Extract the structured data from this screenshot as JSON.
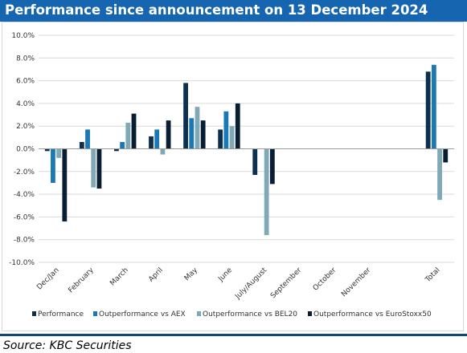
{
  "header": {
    "title": "Performance since announcement on 13 December 2024"
  },
  "footer": {
    "source": "Source: KBC Securities"
  },
  "colors": {
    "header_bg": "#1565b0",
    "series": [
      "#0e2f4d",
      "#1a78b4",
      "#7fa9b5",
      "#0a1e33"
    ],
    "grid": "#d9d9d9"
  },
  "chart_data": {
    "type": "bar",
    "title": "Performance since announcement on 13 December 2024",
    "xlabel": "",
    "ylabel": "",
    "ylim": [
      -10.0,
      10.0
    ],
    "ytick_values": [
      10,
      8,
      6,
      4,
      2,
      0,
      -2,
      -4,
      -6,
      -8,
      -10
    ],
    "ytick_labels": [
      "10.0%",
      "8.0%",
      "6.0%",
      "4.0%",
      "2.0%",
      "0.0%",
      "-2.0%",
      "-4.0%",
      "-6.0%",
      "-8.0%",
      "-10.0%"
    ],
    "grid": true,
    "legend_position": "bottom",
    "categories": [
      "Dec/Jan",
      "February",
      "March",
      "April",
      "May",
      "June",
      "July/August",
      "September",
      "October",
      "November",
      "",
      "Total"
    ],
    "series": [
      {
        "name": "Performance",
        "values": [
          -0.2,
          0.6,
          -0.2,
          1.1,
          5.8,
          1.7,
          -2.3,
          null,
          null,
          null,
          null,
          6.8
        ]
      },
      {
        "name": "Outperformance vs AEX",
        "values": [
          -3.0,
          1.7,
          0.6,
          1.7,
          2.7,
          3.3,
          null,
          null,
          null,
          null,
          null,
          7.4
        ]
      },
      {
        "name": "Outperformance vs BEL20",
        "values": [
          -0.8,
          -3.4,
          2.3,
          -0.5,
          3.7,
          2.0,
          -7.6,
          null,
          null,
          null,
          null,
          -4.5
        ]
      },
      {
        "name": "Outperformance vs EuroStoxx50",
        "values": [
          -6.4,
          -3.5,
          3.1,
          2.5,
          2.5,
          4.0,
          -3.1,
          null,
          null,
          null,
          null,
          -1.2
        ]
      }
    ]
  }
}
